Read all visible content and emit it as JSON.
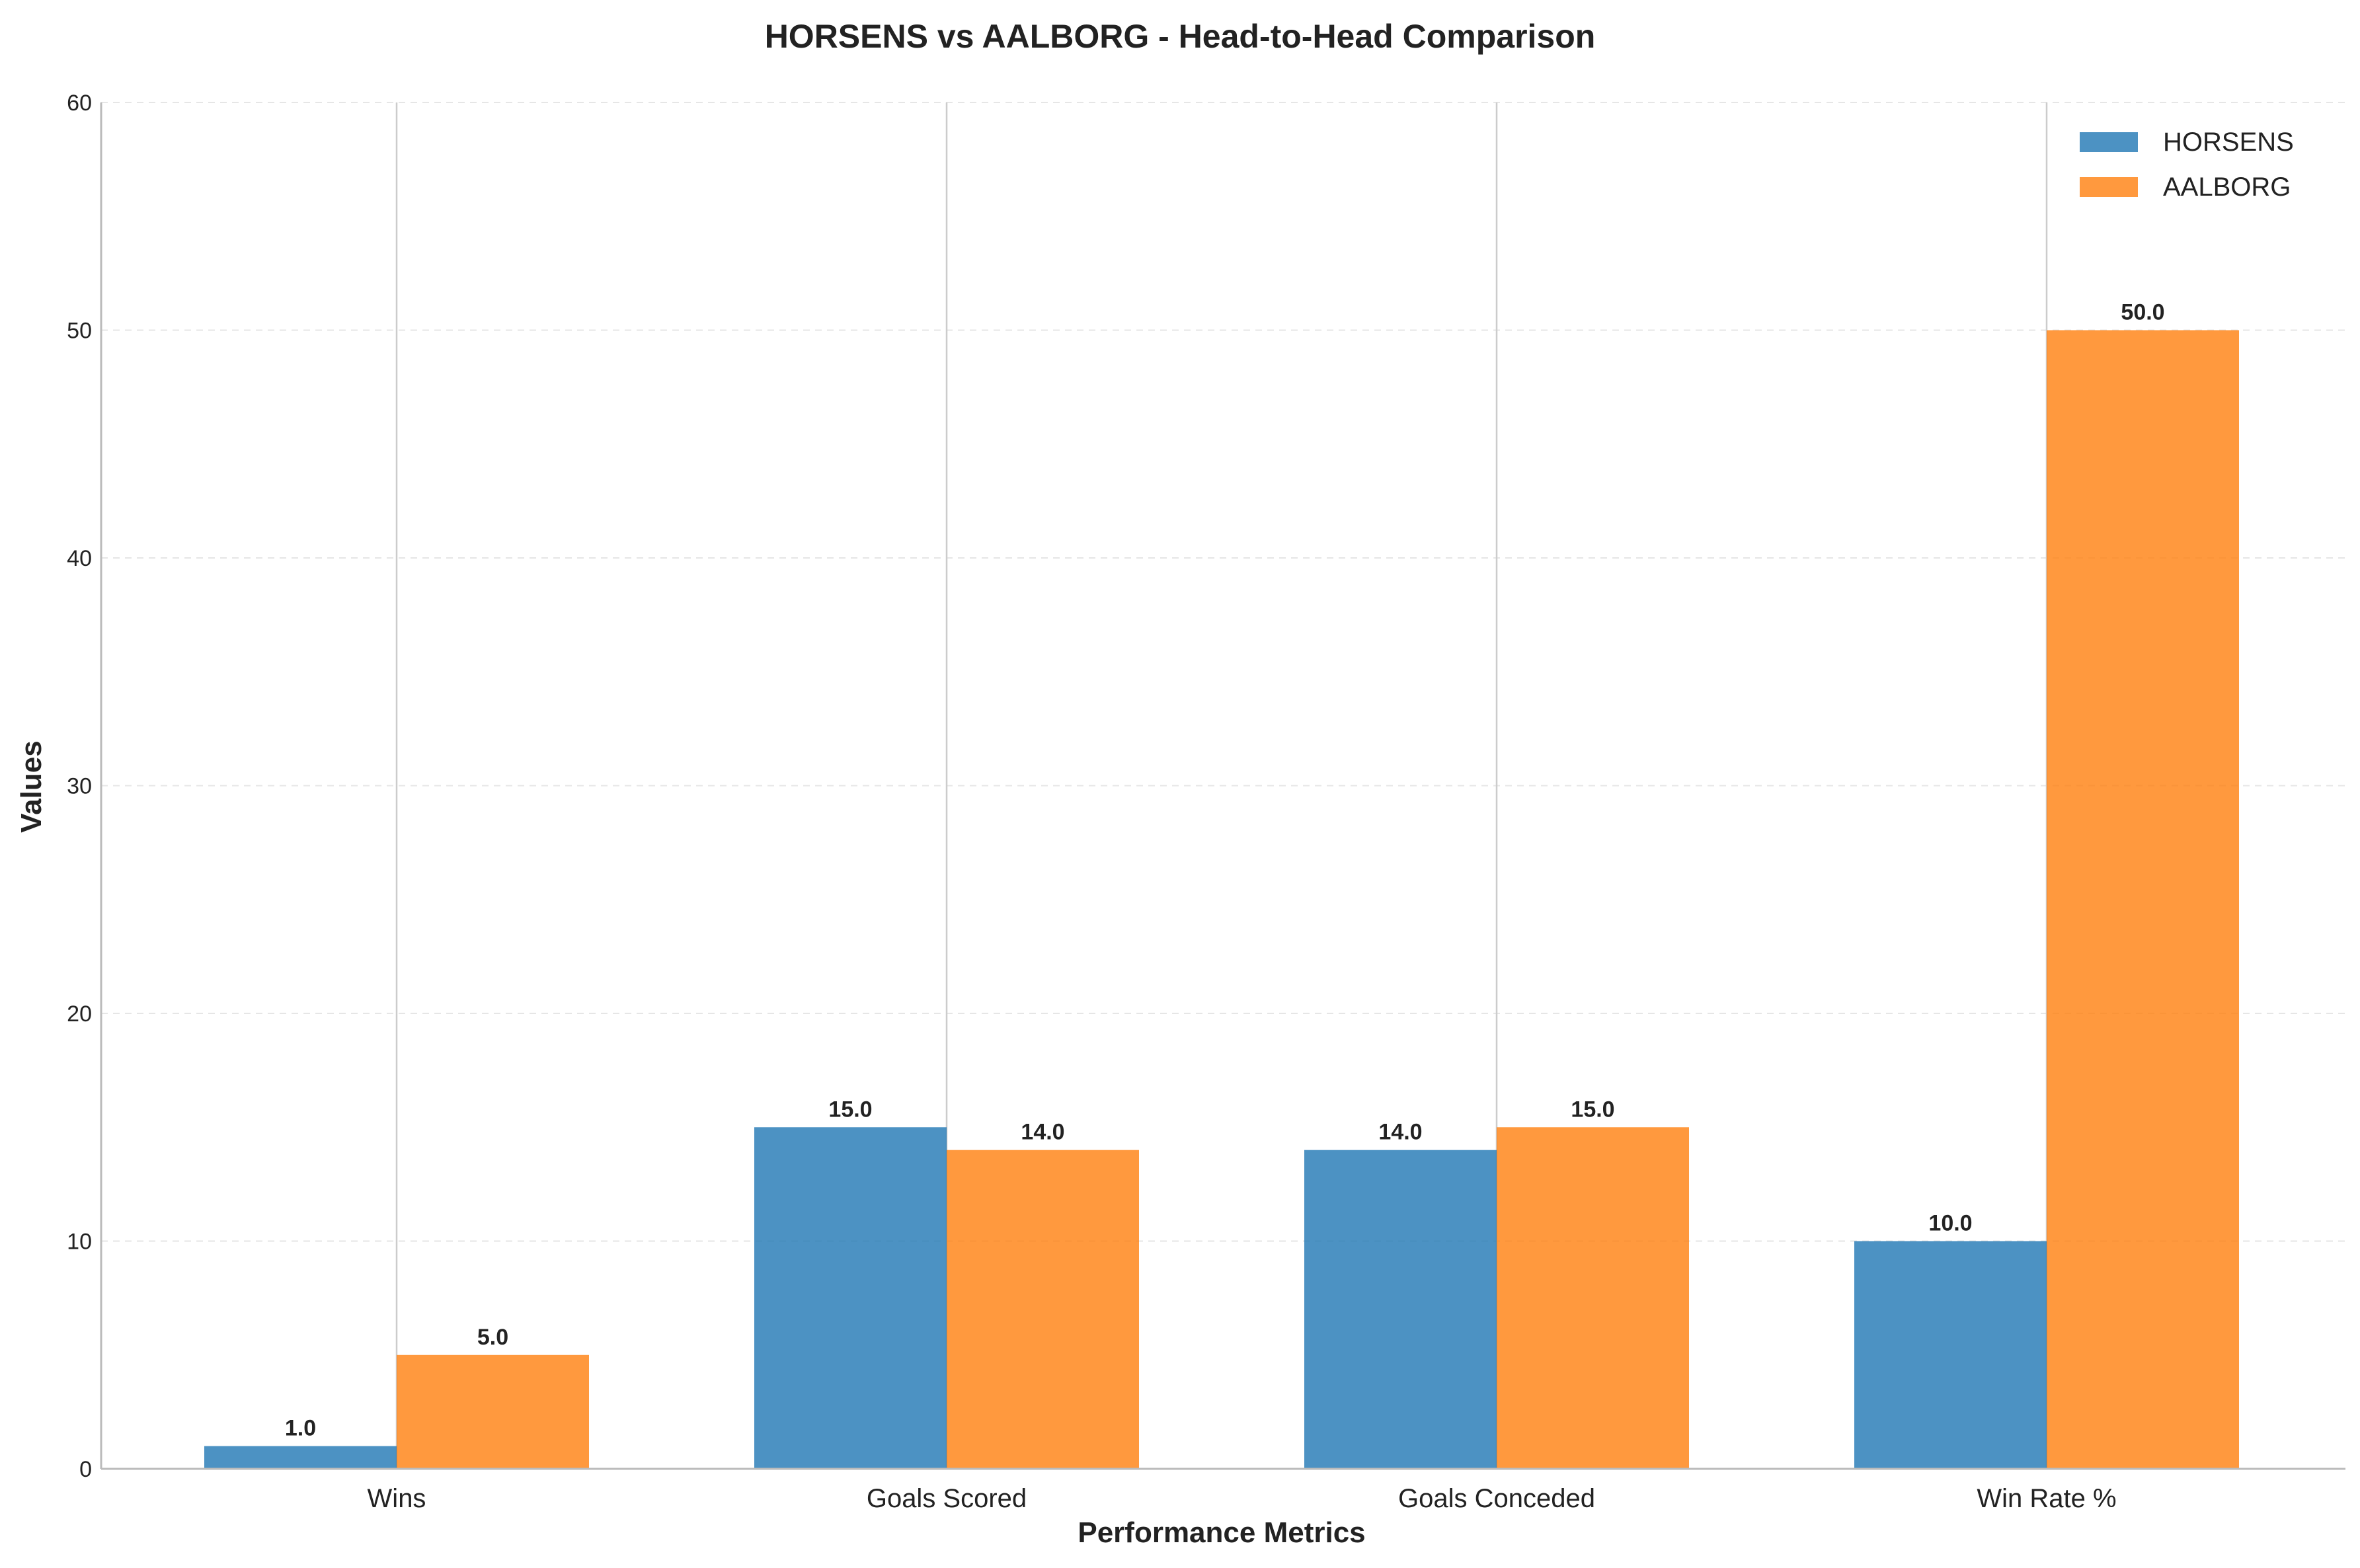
{
  "chart_data": {
    "type": "bar",
    "title": "HORSENS vs AALBORG - Head-to-Head Comparison",
    "xlabel": "Performance Metrics",
    "ylabel": "Values",
    "categories": [
      "Wins",
      "Goals Scored",
      "Goals Conceded",
      "Win Rate %"
    ],
    "series": [
      {
        "name": "HORSENS",
        "values": [
          1.0,
          15.0,
          14.0,
          10.0
        ],
        "color": "#1f77b4"
      },
      {
        "name": "AALBORG",
        "values": [
          5.0,
          14.0,
          15.0,
          50.0
        ],
        "color": "#ff7f0e"
      }
    ],
    "ylim": [
      0,
      60
    ],
    "yticks": [
      0,
      10,
      20,
      30,
      40,
      50,
      60
    ],
    "value_labels": true,
    "grid": "y-dashed",
    "legend_position": "top-right"
  }
}
